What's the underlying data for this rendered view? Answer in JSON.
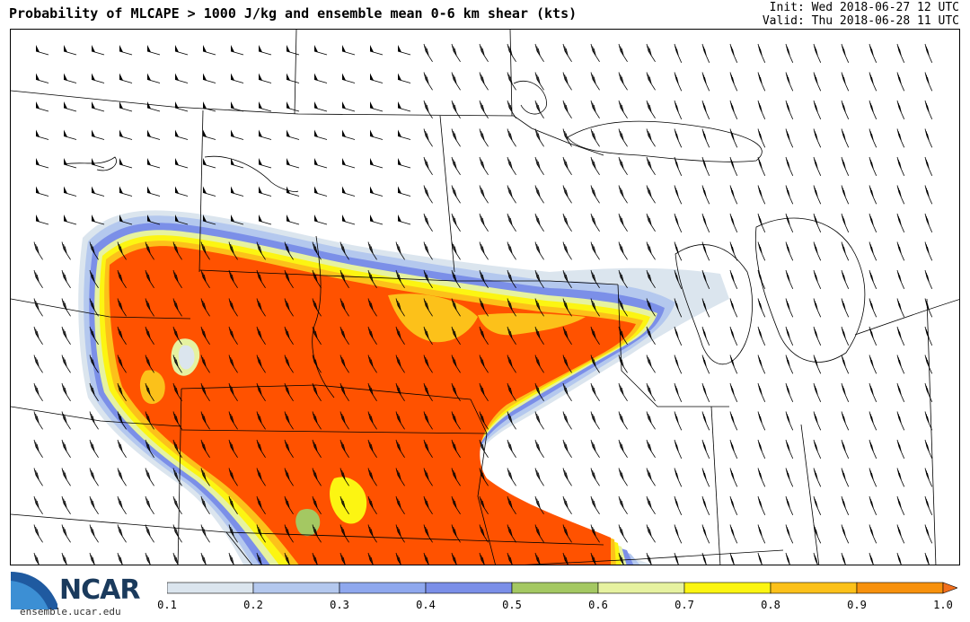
{
  "header": {
    "title": "Probability of MLCAPE > 1000 J/kg and ensemble mean 0-6 km shear (kts)",
    "init": "Init: Wed 2018-06-27 12 UTC",
    "valid": "Valid: Thu 2018-06-28 11 UTC"
  },
  "logo": {
    "name": "NCAR",
    "url": "ensemble.ucar.edu"
  },
  "colorbar": {
    "ticks": [
      "0.1",
      "0.2",
      "0.3",
      "0.4",
      "0.5",
      "0.6",
      "0.7",
      "0.8",
      "0.9",
      "1.0"
    ],
    "colors": [
      "#dbe5ee",
      "#b4c8ee",
      "#8fa8ee",
      "#7b8fe8",
      "#a4c862",
      "#e6f2a0",
      "#fcf512",
      "#fcc11a",
      "#f7910d"
    ],
    "over_color": "#f26f1c"
  },
  "map": {
    "probability_fill_color": "#ff5200",
    "boundary_color": "#000000"
  }
}
